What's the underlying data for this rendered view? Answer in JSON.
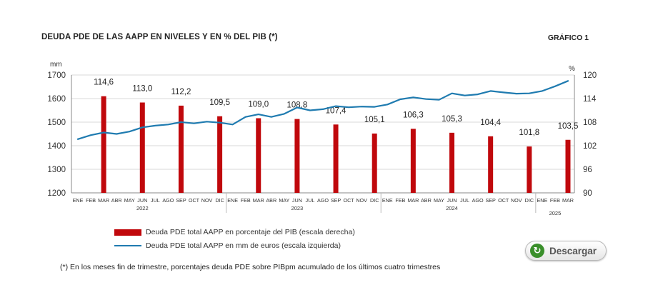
{
  "header": {
    "title": "DEUDA PDE DE LAS AAPP EN NIVELES Y EN % DEL PIB (*)",
    "chart_tag": "GRÁFICO 1"
  },
  "legend": {
    "bar_label": "Deuda PDE total AAPP en porcentaje del PIB (escala derecha)",
    "line_label": "Deuda PDE total AAPP en mm de euros (escala izquierda)"
  },
  "download": {
    "label": "Descargar",
    "icon": "refresh-arrow-icon"
  },
  "footnote": "(*) En los meses fin de trimestre, porcentajes deuda PDE sobre PIBpm acumulado de los últimos cuatro trimestres",
  "colors": {
    "bar": "#c0080c",
    "line": "#1f7bb0",
    "grid": "#d9d9d9"
  },
  "chart_data": {
    "type": "bar+line",
    "left_axis": {
      "unit": "mm",
      "min": 1200,
      "max": 1700,
      "ticks": [
        "1200",
        "1300",
        "1400",
        "1500",
        "1600",
        "1700"
      ]
    },
    "right_axis": {
      "unit": "%",
      "min": 90,
      "max": 120,
      "ticks": [
        "90",
        "96",
        "102",
        "108",
        "114",
        "120"
      ]
    },
    "months": [
      "ENE",
      "FEB",
      "MAR",
      "ABR",
      "MAY",
      "JUN",
      "JUL",
      "AGO",
      "SEP",
      "OCT",
      "NOV",
      "DIC",
      "ENE",
      "FEB",
      "MAR",
      "ABR",
      "MAY",
      "JUN",
      "JUL",
      "AGO",
      "SEP",
      "OCT",
      "NOV",
      "DIC",
      "ENE",
      "FEB",
      "MAR",
      "ABR",
      "MAY",
      "JUN",
      "JUL",
      "AGO",
      "SEP",
      "OCT",
      "NOV",
      "DIC",
      "ENE",
      "FEB",
      "MAR"
    ],
    "years": [
      {
        "label": "2022",
        "center": 5
      },
      {
        "label": "2023",
        "center": 17
      },
      {
        "label": "2024",
        "center": 29
      },
      {
        "label": "2025",
        "center": 37
      }
    ],
    "grid": true,
    "series": [
      {
        "name": "Deuda PDE total AAPP en porcentaje del PIB (escala derecha)",
        "type": "bar",
        "axis": "right",
        "points": [
          {
            "index": 2,
            "value": 114.6,
            "label": "114,6"
          },
          {
            "index": 5,
            "value": 113.0,
            "label": "113,0"
          },
          {
            "index": 8,
            "value": 112.2,
            "label": "112,2"
          },
          {
            "index": 11,
            "value": 109.5,
            "label": "109,5"
          },
          {
            "index": 14,
            "value": 109.0,
            "label": "109,0"
          },
          {
            "index": 17,
            "value": 108.8,
            "label": "108,8"
          },
          {
            "index": 20,
            "value": 107.4,
            "label": "107,4"
          },
          {
            "index": 23,
            "value": 105.1,
            "label": "105,1"
          },
          {
            "index": 26,
            "value": 106.3,
            "label": "106,3"
          },
          {
            "index": 29,
            "value": 105.3,
            "label": "105,3"
          },
          {
            "index": 32,
            "value": 104.4,
            "label": "104,4"
          },
          {
            "index": 35,
            "value": 101.8,
            "label": "101,8"
          },
          {
            "index": 38,
            "value": 103.5,
            "label": "103,5"
          }
        ]
      },
      {
        "name": "Deuda PDE total AAPP en mm de euros (escala izquierda)",
        "type": "line",
        "axis": "left",
        "values": [
          1428,
          1445,
          1456,
          1450,
          1460,
          1478,
          1485,
          1490,
          1500,
          1495,
          1502,
          1498,
          1490,
          1522,
          1533,
          1522,
          1535,
          1562,
          1550,
          1555,
          1568,
          1563,
          1566,
          1565,
          1575,
          1597,
          1605,
          1598,
          1595,
          1622,
          1613,
          1618,
          1632,
          1626,
          1621,
          1622,
          1632,
          1652,
          1675
        ]
      }
    ]
  }
}
